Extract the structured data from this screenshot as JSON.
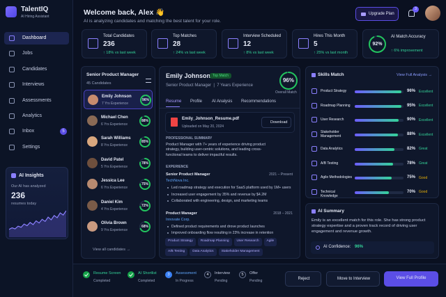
{
  "app": {
    "name": "TalentIQ",
    "tagline": "AI Hiring Assistant"
  },
  "nav": [
    {
      "label": "Dashboard"
    },
    {
      "label": "Jobs"
    },
    {
      "label": "Candidates"
    },
    {
      "label": "Interviews"
    },
    {
      "label": "Assessments"
    },
    {
      "label": "Analytics"
    },
    {
      "label": "Inbox",
      "badge": "5"
    },
    {
      "label": "Settings"
    }
  ],
  "insights": {
    "title": "AI Insights",
    "text": "Our AI has analyzed",
    "value": "236",
    "unit": "resumes today",
    "trend": [
      12,
      15,
      13,
      18,
      16,
      22,
      19,
      25,
      21,
      28,
      24,
      31,
      27,
      35,
      30,
      38,
      34,
      43,
      39,
      47
    ]
  },
  "header": {
    "title": "Welcome back, Alex 👋",
    "subtitle": "AI is analyzing candidates and matching the best talent for your role.",
    "upgrade": "Upgrade Plan",
    "notifications": "3"
  },
  "stats": [
    {
      "label": "Total Candidates",
      "value": "236",
      "change": "↑ 18% vs last week"
    },
    {
      "label": "Top Matches",
      "value": "28",
      "change": "↑ 24% vs last week"
    },
    {
      "label": "Interview Scheduled",
      "value": "12",
      "change": "↑ 8% vs last week"
    },
    {
      "label": "Hires This Month",
      "value": "5",
      "change": "↑ 25% vs last month"
    },
    {
      "label": "AI Match Accuracy",
      "value": {
        "value": 92,
        "label": "92%"
      },
      "change": "↑ 6% improvement"
    }
  ],
  "job": {
    "title": "Senior Product Manager",
    "count": "45 Candidates",
    "view_all": "View all candidates →"
  },
  "candidates": [
    {
      "name": "Emily Johnson",
      "experience": "7 Yrs Experience",
      "match": {
        "value": 96,
        "label": "96%"
      }
    },
    {
      "name": "Michael Chen",
      "experience": "6 Yrs Experience",
      "match": {
        "value": 88,
        "label": "88%"
      }
    },
    {
      "name": "Sarah Williams",
      "experience": "8 Yrs Experience",
      "match": {
        "value": 85,
        "label": "85%"
      }
    },
    {
      "name": "David Patel",
      "experience": "5 Yrs Experience",
      "match": {
        "value": 78,
        "label": "78%"
      }
    },
    {
      "name": "Jessica Lee",
      "experience": "6 Yrs Experience",
      "match": {
        "value": 75,
        "label": "75%"
      }
    },
    {
      "name": "Daniel Kim",
      "experience": "4 Yrs Experience",
      "match": {
        "value": 72,
        "label": "72%"
      }
    },
    {
      "name": "Olivia Brown",
      "experience": "9 Yrs Experience",
      "match": {
        "value": 68,
        "label": "68%"
      }
    }
  ],
  "detail": {
    "name": "Emily Johnson",
    "badge": "Top Match",
    "subtitle": "Senior Product Manager  |  7 Years Experience",
    "match": {
      "value": 96,
      "label": "96%"
    },
    "match_label": "Overall Match",
    "tabs": [
      "Resume",
      "Profile",
      "AI Analysis",
      "Recommendations"
    ],
    "file": {
      "name": "Emily_Johnson_Resume.pdf",
      "uploaded": "Uploaded on May 20, 2024",
      "action": "Download"
    },
    "summary_heading": "PROFESSIONAL SUMMARY",
    "summary": "Product Manager with 7+ years of experience driving product strategy, building user-centric solutions, and leading cross-functional teams to deliver impactful results.",
    "experience_heading": "EXPERIENCE",
    "jobs": [
      {
        "title": "Senior Product Manager",
        "dates": "2021 – Present",
        "company": "TechNova Inc.",
        "bullets": [
          "Led roadmap strategy and execution for SaaS platform used by 1M+ users",
          "Increased user engagement by 35% and revenue by $4.2M",
          "Collaborated with engineering, design, and marketing teams"
        ]
      },
      {
        "title": "Product Manager",
        "dates": "2018 – 2021",
        "company": "Innovate Corp.",
        "bullets": [
          "Defined product requirements and drove product launches",
          "Improved onboarding flow resulting in 23% increase in retention"
        ]
      }
    ],
    "tags": [
      "Product Strategy",
      "Roadmap Planning",
      "User Research",
      "Agile",
      "A/B Testing",
      "Data Analytics",
      "Stakeholder Management"
    ]
  },
  "skills": {
    "title": "Skills Match",
    "link": "View Full Analysis →",
    "items": [
      {
        "name": "Product Strategy",
        "value": 96,
        "value_label": "96%",
        "rating": "Excellent"
      },
      {
        "name": "Roadmap Planning",
        "value": 95,
        "value_label": "95%",
        "rating": "Excellent"
      },
      {
        "name": "User Research",
        "value": 90,
        "value_label": "90%",
        "rating": "Excellent"
      },
      {
        "name": "Stakeholder Management",
        "value": 88,
        "value_label": "88%",
        "rating": "Excellent"
      },
      {
        "name": "Data Analytics",
        "value": 82,
        "value_label": "82%",
        "rating": "Great"
      },
      {
        "name": "A/B Testing",
        "value": 78,
        "value_label": "78%",
        "rating": "Great"
      },
      {
        "name": "Agile Methodologies",
        "value": 75,
        "value_label": "75%",
        "rating": "Good"
      },
      {
        "name": "Technical Knowledge",
        "value": 70,
        "value_label": "70%",
        "rating": "Good"
      }
    ]
  },
  "summary": {
    "title": "AI Summary",
    "text": "Emily is an excellent match for this role. She has strong product strategy expertise and a proven track record of driving user engagement and revenue growth.",
    "confidence_label": "AI Confidence:",
    "confidence": "96%"
  },
  "pipeline": [
    {
      "label": "Resume Screen",
      "status": "Completed"
    },
    {
      "label": "AI Shortlist",
      "status": "Completed"
    },
    {
      "number": "3",
      "label": "Assessment",
      "status": "In Progress"
    },
    {
      "number": "4",
      "label": "Interview",
      "status": "Pending"
    },
    {
      "number": "5",
      "label": "Offer",
      "status": "Pending"
    }
  ],
  "actions": [
    "Reject",
    "Move to Interview",
    "View Full Profile"
  ]
}
